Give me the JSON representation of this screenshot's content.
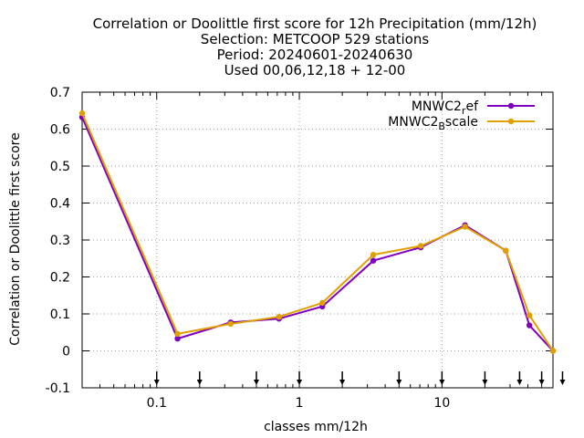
{
  "chart_data": {
    "type": "line",
    "title_lines": [
      "Correlation or Doolittle first score  for 12h Precipitation (mm/12h)",
      "Selection: METCOOP    529 stations",
      "Period: 20240601-20240630",
      "Used 00,06,12,18 + 12-00"
    ],
    "xlabel": "classes mm/12h",
    "ylabel": "Correlation or Doolittle first score",
    "xscale": "log",
    "xlim": [
      0.03,
      60
    ],
    "ylim": [
      -0.1,
      0.7
    ],
    "grid": true,
    "legend_position": "top-right",
    "x_ticks": [
      {
        "value": 0.1,
        "label": "0.1"
      },
      {
        "value": 1,
        "label": "1"
      },
      {
        "value": 10,
        "label": "10"
      }
    ],
    "y_ticks": [
      {
        "value": -0.1,
        "label": "-0.1"
      },
      {
        "value": 0,
        "label": "0"
      },
      {
        "value": 0.1,
        "label": "0.1"
      },
      {
        "value": 0.2,
        "label": "0.2"
      },
      {
        "value": 0.3,
        "label": "0.3"
      },
      {
        "value": 0.4,
        "label": "0.4"
      },
      {
        "value": 0.5,
        "label": "0.5"
      },
      {
        "value": 0.6,
        "label": "0.6"
      },
      {
        "value": 0.7,
        "label": "0.7"
      }
    ],
    "class_limits": [
      0.1,
      0.2,
      0.5,
      1,
      2,
      5,
      10,
      20,
      35,
      50,
      70
    ],
    "series": [
      {
        "name_main": "MNWC2",
        "name_sub": "r",
        "name_rest": "ef",
        "color": "#8000c0",
        "x": [
          0.03,
          0.14,
          0.33,
          0.72,
          1.45,
          3.3,
          7.1,
          14.5,
          28,
          41,
          60
        ],
        "y": [
          0.632,
          0.033,
          0.077,
          0.087,
          0.12,
          0.244,
          0.28,
          0.34,
          0.271,
          0.069,
          0.0
        ]
      },
      {
        "name_main": "MNWC2",
        "name_sub": "B",
        "name_rest": "scale",
        "color": "#e0a000",
        "x": [
          0.03,
          0.14,
          0.33,
          0.72,
          1.45,
          3.3,
          7.1,
          14.5,
          28,
          41,
          60
        ],
        "y": [
          0.643,
          0.046,
          0.073,
          0.092,
          0.13,
          0.26,
          0.284,
          0.336,
          0.271,
          0.096,
          0.0
        ]
      }
    ]
  }
}
